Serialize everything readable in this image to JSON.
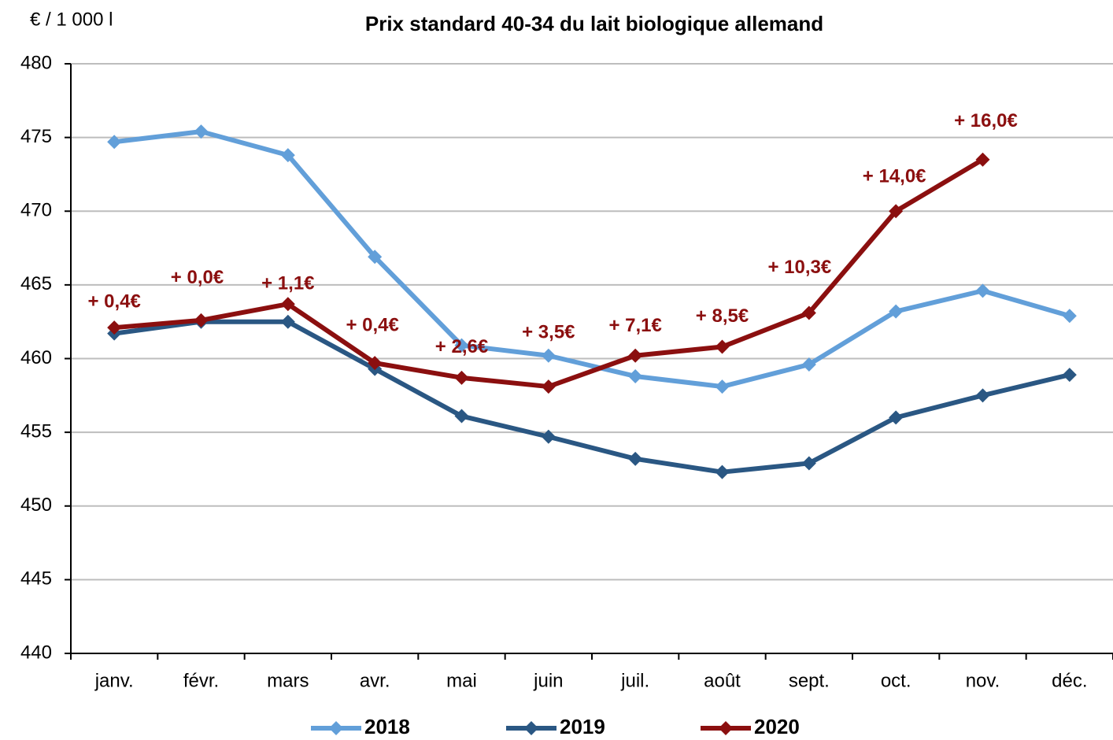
{
  "chart_data": {
    "type": "line",
    "title": "Prix standard 40-34 du lait biologique allemand",
    "y_label": "€ / 1 000 l",
    "categories": [
      "janv.",
      "févr.",
      "mars",
      "avr.",
      "mai",
      "juin",
      "juil.",
      "août",
      "sept.",
      "oct.",
      "nov.",
      "déc."
    ],
    "series": [
      {
        "name": "2018",
        "color": "#629fd9",
        "values": [
          474.7,
          475.4,
          473.8,
          466.9,
          460.9,
          460.2,
          458.8,
          458.1,
          459.6,
          463.2,
          464.6,
          462.9
        ]
      },
      {
        "name": "2019",
        "color": "#2a5783",
        "values": [
          461.7,
          462.5,
          462.5,
          459.3,
          456.1,
          454.7,
          453.2,
          452.3,
          452.9,
          456.0,
          457.5,
          458.9
        ]
      },
      {
        "name": "2020",
        "color": "#8b0f0f",
        "values": [
          462.1,
          462.6,
          463.7,
          459.7,
          458.7,
          458.1,
          460.2,
          460.8,
          463.1,
          470.0,
          473.5,
          null
        ]
      }
    ],
    "annotations": [
      "+ 0,4€",
      "+ 0,0€",
      "+ 1,1€",
      "+ 0,4€",
      "+ 2,6€",
      "+ 3,5€",
      "+ 7,1€",
      "+ 8,5€",
      "+ 10,3€",
      "+ 14,0€",
      "+ 16,0€"
    ],
    "ylim": [
      440,
      480
    ],
    "yticks": [
      440,
      445,
      450,
      455,
      460,
      465,
      470,
      475,
      480
    ],
    "grid": true,
    "legend": "bottom"
  }
}
